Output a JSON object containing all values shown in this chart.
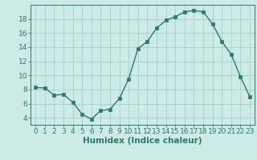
{
  "x": [
    0,
    1,
    2,
    3,
    4,
    5,
    6,
    7,
    8,
    9,
    10,
    11,
    12,
    13,
    14,
    15,
    16,
    17,
    18,
    19,
    20,
    21,
    22,
    23
  ],
  "y": [
    8.3,
    8.2,
    7.2,
    7.3,
    6.2,
    4.5,
    3.8,
    5.0,
    5.2,
    6.7,
    9.5,
    13.8,
    14.8,
    16.7,
    17.8,
    18.3,
    19.0,
    19.2,
    19.0,
    17.3,
    14.8,
    13.0,
    9.8,
    7.0
  ],
  "xlabel": "Humidex (Indice chaleur)",
  "xlim": [
    -0.5,
    23.5
  ],
  "ylim": [
    3.0,
    20.0
  ],
  "yticks": [
    4,
    6,
    8,
    10,
    12,
    14,
    16,
    18
  ],
  "xtick_labels": [
    "0",
    "1",
    "2",
    "3",
    "4",
    "5",
    "6",
    "7",
    "8",
    "9",
    "10",
    "11",
    "12",
    "13",
    "14",
    "15",
    "16",
    "17",
    "18",
    "19",
    "20",
    "21",
    "22",
    "23"
  ],
  "line_color": "#2d7a6b",
  "bg_color": "#cceae6",
  "grid_color": "#aad4cf",
  "label_fontsize": 7.5,
  "tick_fontsize": 6.5
}
